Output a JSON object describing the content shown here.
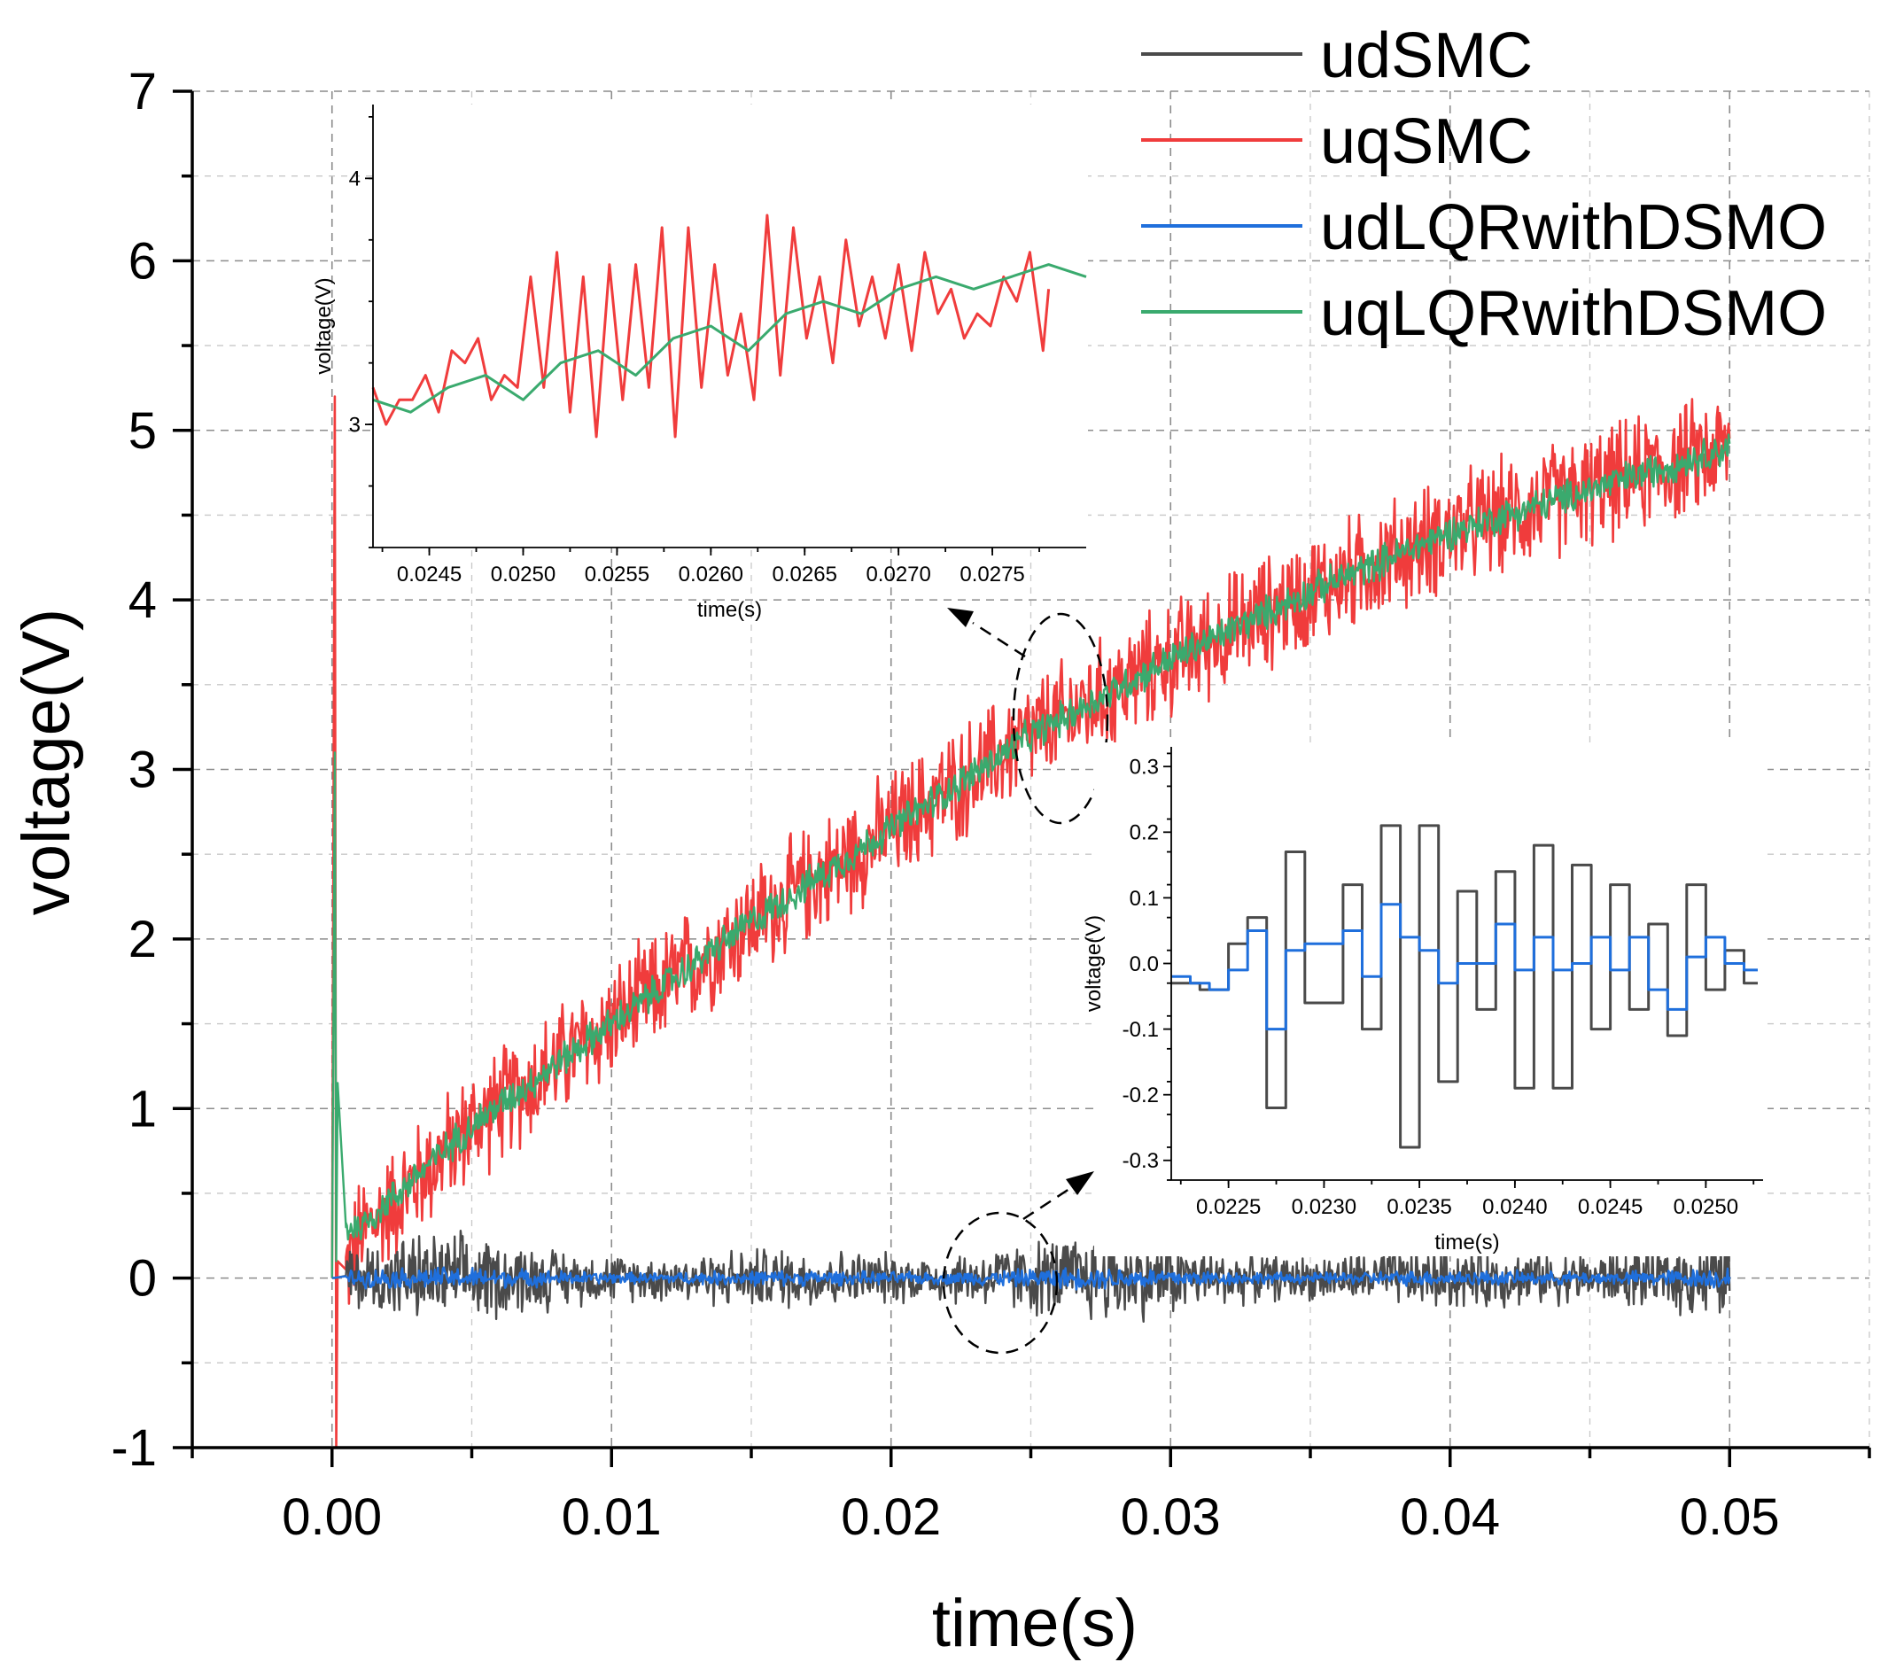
{
  "chart_data": [
    {
      "type": "line",
      "title": "",
      "xlabel": "time(s)",
      "ylabel": "voltage(V)",
      "xlim": [
        -0.005,
        0.055
      ],
      "ylim": [
        -1,
        7
      ],
      "x_ticks": [
        0.0,
        0.01,
        0.02,
        0.03,
        0.04,
        0.05
      ],
      "x_tick_labels": [
        "0.00",
        "0.01",
        "0.02",
        "0.03",
        "0.04",
        "0.05"
      ],
      "y_ticks": [
        -1,
        0,
        1,
        2,
        3,
        4,
        5,
        6,
        7
      ],
      "y_tick_labels": [
        "-1",
        "0",
        "1",
        "2",
        "3",
        "4",
        "5",
        "6",
        "7"
      ],
      "grid": true,
      "legend_position": "top-right",
      "series": [
        {
          "name": "udSMC",
          "color": "#4a4a4a",
          "trend": {
            "x": [
              0.0,
              0.0001,
              0.05
            ],
            "y": [
              0.0,
              0.0,
              0.0
            ]
          },
          "noise_amplitude": 0.2
        },
        {
          "name": "uqSMC",
          "color": "#f03c3c",
          "trend": {
            "x": [
              0.0,
              0.0001,
              0.00015,
              0.0002,
              0.0005,
              0.001,
              0.005,
              0.01,
              0.015,
              0.02,
              0.025,
              0.03,
              0.035,
              0.04,
              0.045,
              0.05
            ],
            "y": [
              0.0,
              5.2,
              -1.0,
              0.1,
              0.05,
              0.25,
              0.9,
              1.5,
              2.1,
              2.65,
              3.2,
              3.65,
              4.05,
              4.4,
              4.65,
              4.9
            ]
          },
          "noise_amplitude": 0.4
        },
        {
          "name": "udLQRwithDSMO",
          "color": "#1f6fdc",
          "trend": {
            "x": [
              0.0,
              0.05
            ],
            "y": [
              0.0,
              0.0
            ]
          },
          "noise_amplitude": 0.05
        },
        {
          "name": "uqLQRwithDSMO",
          "color": "#3aaa6e",
          "trend": {
            "x": [
              0.0,
              0.0001,
              0.00015,
              0.0002,
              0.0005,
              0.001,
              0.005,
              0.01,
              0.015,
              0.02,
              0.025,
              0.03,
              0.035,
              0.04,
              0.045,
              0.05
            ],
            "y": [
              0.0,
              3.1,
              0.1,
              1.15,
              0.3,
              0.3,
              0.9,
              1.5,
              2.1,
              2.65,
              3.2,
              3.65,
              4.05,
              4.4,
              4.65,
              4.9
            ]
          },
          "noise_amplitude": 0.12
        }
      ]
    },
    {
      "type": "line",
      "title": "",
      "xlabel": "time(s)",
      "ylabel": "voltage(V)",
      "xlim": [
        0.0242,
        0.028
      ],
      "ylim": [
        2.5,
        4.3
      ],
      "x_ticks": [
        0.0245,
        0.025,
        0.0255,
        0.026,
        0.0265,
        0.027,
        0.0275
      ],
      "x_tick_labels": [
        "0.0245",
        "0.0250",
        "0.0255",
        "0.0260",
        "0.0265",
        "0.0270",
        "0.0275"
      ],
      "y_ticks": [
        3,
        4
      ],
      "y_tick_labels": [
        "3",
        "4"
      ],
      "series": [
        {
          "name": "uqSMC",
          "color": "#f03c3c",
          "points": [
            [
              0.0242,
              3.15
            ],
            [
              0.02427,
              3.0
            ],
            [
              0.02434,
              3.1
            ],
            [
              0.02441,
              3.1
            ],
            [
              0.02448,
              3.2
            ],
            [
              0.02455,
              3.05
            ],
            [
              0.02462,
              3.3
            ],
            [
              0.02469,
              3.25
            ],
            [
              0.02476,
              3.35
            ],
            [
              0.02483,
              3.1
            ],
            [
              0.0249,
              3.2
            ],
            [
              0.02497,
              3.15
            ],
            [
              0.02504,
              3.6
            ],
            [
              0.02511,
              3.15
            ],
            [
              0.02518,
              3.7
            ],
            [
              0.02525,
              3.05
            ],
            [
              0.02532,
              3.6
            ],
            [
              0.02539,
              2.95
            ],
            [
              0.02546,
              3.65
            ],
            [
              0.02553,
              3.1
            ],
            [
              0.0256,
              3.65
            ],
            [
              0.02567,
              3.15
            ],
            [
              0.02574,
              3.8
            ],
            [
              0.02581,
              2.95
            ],
            [
              0.02588,
              3.8
            ],
            [
              0.02595,
              3.15
            ],
            [
              0.02602,
              3.65
            ],
            [
              0.02609,
              3.2
            ],
            [
              0.02616,
              3.45
            ],
            [
              0.02623,
              3.1
            ],
            [
              0.0263,
              3.85
            ],
            [
              0.02637,
              3.2
            ],
            [
              0.02644,
              3.8
            ],
            [
              0.02651,
              3.35
            ],
            [
              0.02658,
              3.6
            ],
            [
              0.02665,
              3.25
            ],
            [
              0.02672,
              3.75
            ],
            [
              0.02679,
              3.4
            ],
            [
              0.02686,
              3.6
            ],
            [
              0.02693,
              3.35
            ],
            [
              0.027,
              3.65
            ],
            [
              0.02707,
              3.3
            ],
            [
              0.02714,
              3.7
            ],
            [
              0.02721,
              3.45
            ],
            [
              0.02728,
              3.55
            ],
            [
              0.02735,
              3.35
            ],
            [
              0.02742,
              3.45
            ],
            [
              0.02749,
              3.4
            ],
            [
              0.02756,
              3.6
            ],
            [
              0.02763,
              3.5
            ],
            [
              0.0277,
              3.7
            ],
            [
              0.02777,
              3.3
            ],
            [
              0.0278,
              3.55
            ]
          ]
        },
        {
          "name": "uqLQRwithDSMO",
          "color": "#3aaa6e",
          "points": [
            [
              0.0242,
              3.1
            ],
            [
              0.0244,
              3.05
            ],
            [
              0.0246,
              3.15
            ],
            [
              0.0248,
              3.2
            ],
            [
              0.025,
              3.1
            ],
            [
              0.0252,
              3.25
            ],
            [
              0.0254,
              3.3
            ],
            [
              0.0256,
              3.2
            ],
            [
              0.0258,
              3.35
            ],
            [
              0.026,
              3.4
            ],
            [
              0.0262,
              3.3
            ],
            [
              0.0264,
              3.45
            ],
            [
              0.0266,
              3.5
            ],
            [
              0.0268,
              3.45
            ],
            [
              0.027,
              3.55
            ],
            [
              0.0272,
              3.6
            ],
            [
              0.0274,
              3.55
            ],
            [
              0.0276,
              3.6
            ],
            [
              0.0278,
              3.65
            ],
            [
              0.028,
              3.6
            ]
          ]
        }
      ]
    },
    {
      "type": "line",
      "title": "",
      "xlabel": "time(s)",
      "ylabel": "voltage(V)",
      "xlim": [
        0.0222,
        0.0253
      ],
      "ylim": [
        -0.33,
        0.33
      ],
      "x_ticks": [
        0.0225,
        0.023,
        0.0235,
        0.024,
        0.0245,
        0.025
      ],
      "x_tick_labels": [
        "0.0225",
        "0.0230",
        "0.0235",
        "0.0240",
        "0.0245",
        "0.0250"
      ],
      "y_ticks": [
        -0.3,
        -0.2,
        -0.1,
        0.0,
        0.1,
        0.2,
        0.3
      ],
      "y_tick_labels": [
        "-0.3",
        "-0.2",
        "-0.1",
        "0.0",
        "0.1",
        "0.2",
        "0.3"
      ],
      "series": [
        {
          "name": "udSMC",
          "color": "#4a4a4a",
          "steps": [
            [
              0.0222,
              -0.03
            ],
            [
              0.02235,
              -0.04
            ],
            [
              0.0225,
              0.03
            ],
            [
              0.0226,
              0.07
            ],
            [
              0.0227,
              -0.22
            ],
            [
              0.0228,
              0.17
            ],
            [
              0.0229,
              -0.06
            ],
            [
              0.0231,
              0.12
            ],
            [
              0.0232,
              -0.1
            ],
            [
              0.0233,
              0.21
            ],
            [
              0.0234,
              -0.28
            ],
            [
              0.0235,
              0.21
            ],
            [
              0.0236,
              -0.18
            ],
            [
              0.0237,
              0.11
            ],
            [
              0.0238,
              -0.07
            ],
            [
              0.0239,
              0.14
            ],
            [
              0.024,
              -0.19
            ],
            [
              0.0241,
              0.18
            ],
            [
              0.0242,
              -0.19
            ],
            [
              0.0243,
              0.15
            ],
            [
              0.0244,
              -0.1
            ],
            [
              0.0245,
              0.12
            ],
            [
              0.0246,
              -0.07
            ],
            [
              0.0247,
              0.06
            ],
            [
              0.0248,
              -0.11
            ],
            [
              0.0249,
              0.12
            ],
            [
              0.025,
              -0.04
            ],
            [
              0.0251,
              0.02
            ],
            [
              0.0252,
              -0.03
            ]
          ]
        },
        {
          "name": "udLQRwithDSMO",
          "color": "#1f6fdc",
          "steps": [
            [
              0.0222,
              -0.02
            ],
            [
              0.0223,
              -0.03
            ],
            [
              0.0224,
              -0.04
            ],
            [
              0.0225,
              -0.01
            ],
            [
              0.0226,
              0.05
            ],
            [
              0.0227,
              -0.1
            ],
            [
              0.0228,
              0.02
            ],
            [
              0.0229,
              0.03
            ],
            [
              0.0231,
              0.05
            ],
            [
              0.0232,
              -0.02
            ],
            [
              0.0233,
              0.09
            ],
            [
              0.0234,
              0.04
            ],
            [
              0.0235,
              0.02
            ],
            [
              0.0236,
              -0.03
            ],
            [
              0.0237,
              0.0
            ],
            [
              0.0238,
              0.0
            ],
            [
              0.0239,
              0.06
            ],
            [
              0.024,
              -0.01
            ],
            [
              0.0241,
              0.04
            ],
            [
              0.0242,
              -0.01
            ],
            [
              0.0243,
              0.0
            ],
            [
              0.0244,
              0.04
            ],
            [
              0.0245,
              -0.01
            ],
            [
              0.0246,
              0.04
            ],
            [
              0.0247,
              -0.04
            ],
            [
              0.0248,
              -0.07
            ],
            [
              0.0249,
              0.01
            ],
            [
              0.025,
              0.04
            ],
            [
              0.0251,
              0.0
            ],
            [
              0.0252,
              -0.01
            ]
          ]
        }
      ]
    }
  ]
}
